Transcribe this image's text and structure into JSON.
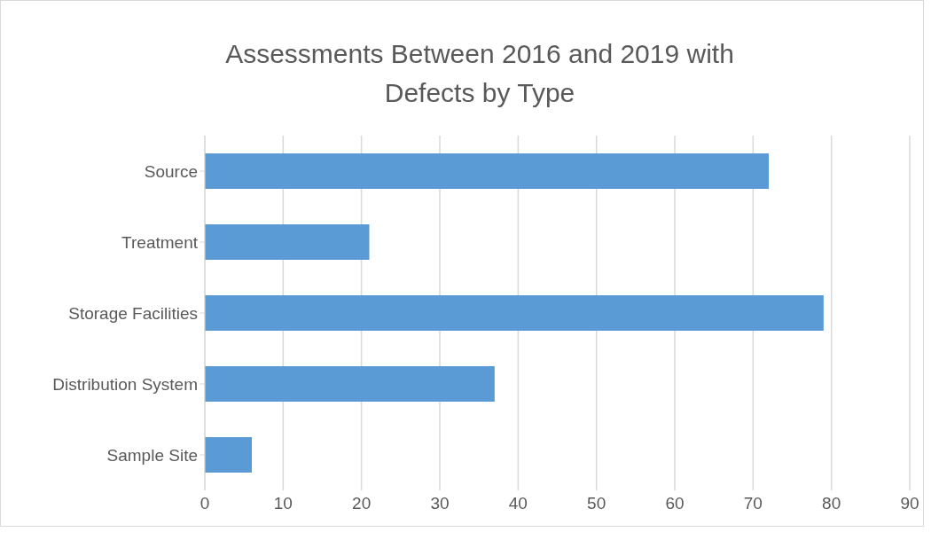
{
  "chart_data": {
    "type": "bar",
    "orientation": "horizontal",
    "title": "Assessments Between 2016 and 2019 with Defects by Type",
    "categories": [
      "Source",
      "Treatment",
      "Storage Facilities",
      "Distribution System",
      "Sample Site"
    ],
    "values": [
      72,
      21,
      79,
      37,
      6
    ],
    "color": "#5b9bd5",
    "xlim": [
      0,
      90
    ],
    "xticks": [
      0,
      10,
      20,
      30,
      40,
      50,
      60,
      70,
      80,
      90
    ],
    "grid": "x"
  }
}
